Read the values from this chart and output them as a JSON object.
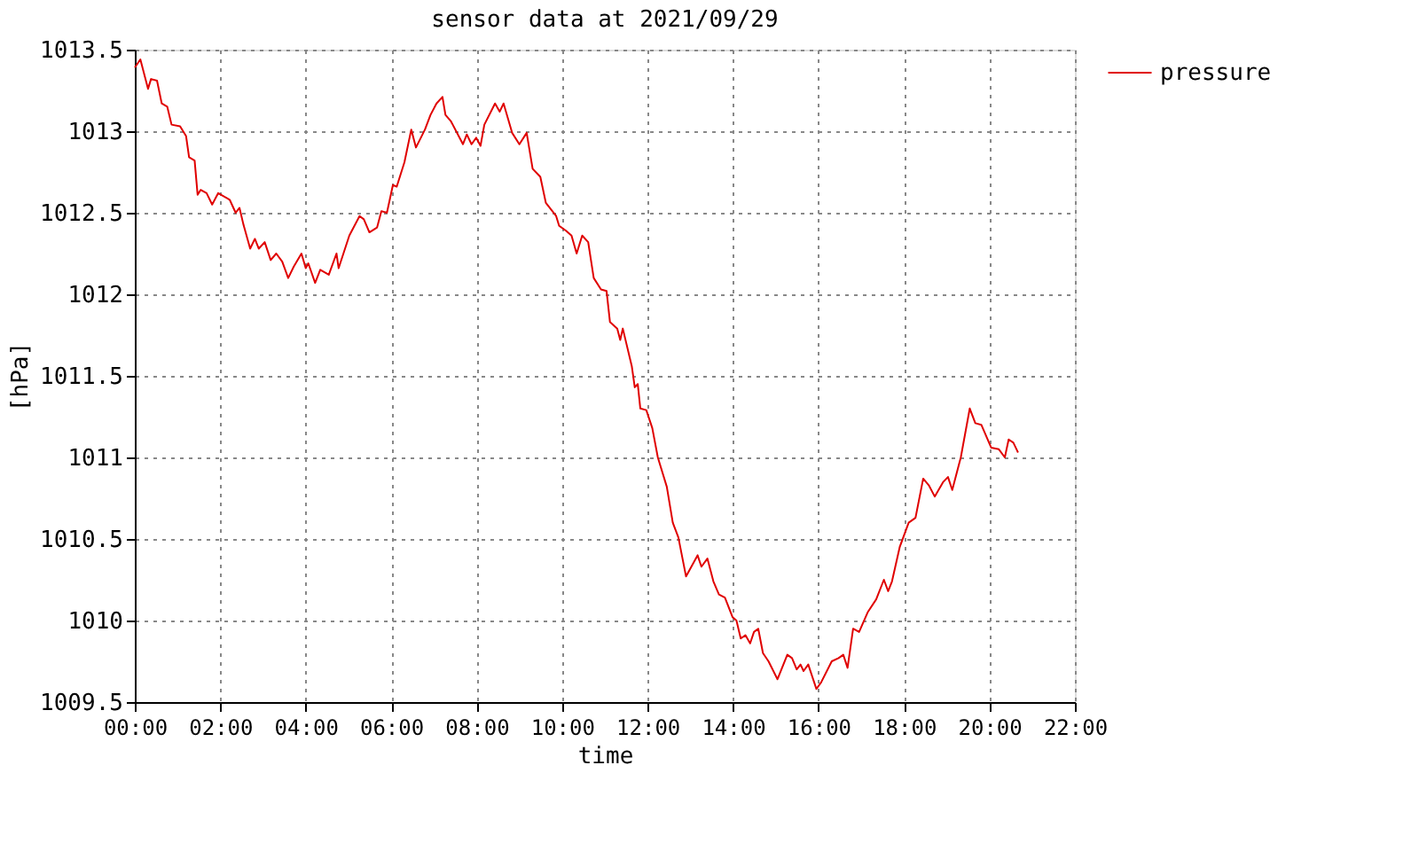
{
  "chart_data": {
    "type": "line",
    "title": "sensor data at 2021/09/29",
    "xlabel": "time",
    "ylabel": "[hPa]",
    "x": [
      0.0,
      0.13,
      0.31,
      0.38,
      0.52,
      0.63,
      0.76,
      0.86,
      1.06,
      1.2,
      1.27,
      1.4,
      1.47,
      1.54,
      1.68,
      1.81,
      1.95,
      2.22,
      2.36,
      2.45,
      2.54,
      2.7,
      2.81,
      2.9,
      3.04,
      3.18,
      3.31,
      3.45,
      3.59,
      3.72,
      3.9,
      4.0,
      4.06,
      4.22,
      4.34,
      4.54,
      4.72,
      4.77,
      5.02,
      5.26,
      5.36,
      5.49,
      5.67,
      5.77,
      5.9,
      6.04,
      6.13,
      6.31,
      6.47,
      6.58,
      6.79,
      6.92,
      7.06,
      7.2,
      7.27,
      7.4,
      7.68,
      7.77,
      7.88,
      7.99,
      8.09,
      8.18,
      8.43,
      8.54,
      8.63,
      8.83,
      9.0,
      9.17,
      9.31,
      9.49,
      9.62,
      9.86,
      9.93,
      10.09,
      10.22,
      10.34,
      10.47,
      10.61,
      10.74,
      10.91,
      11.04,
      11.12,
      11.29,
      11.36,
      11.42,
      11.63,
      11.7,
      11.77,
      11.83,
      11.97,
      12.11,
      12.24,
      12.45,
      12.59,
      12.72,
      12.9,
      13.17,
      13.26,
      13.4,
      13.54,
      13.67,
      13.81,
      13.99,
      14.08,
      14.18,
      14.29,
      14.4,
      14.49,
      14.59,
      14.7,
      14.83,
      15.04,
      15.27,
      15.38,
      15.49,
      15.58,
      15.65,
      15.76,
      15.9,
      15.95,
      16.06,
      16.31,
      16.47,
      16.58,
      16.68,
      16.81,
      16.95,
      17.15,
      17.35,
      17.53,
      17.63,
      17.72,
      17.9,
      18.11,
      18.27,
      18.45,
      18.58,
      18.72,
      18.92,
      19.03,
      19.13,
      19.33,
      19.54,
      19.67,
      19.81,
      20.04,
      20.22,
      20.36,
      20.45,
      20.56,
      20.67
    ],
    "series": [
      {
        "name": "pressure",
        "color": "#e00000",
        "values": [
          1013.39,
          1013.44,
          1013.26,
          1013.32,
          1013.31,
          1013.17,
          1013.15,
          1013.04,
          1013.03,
          1012.97,
          1012.84,
          1012.82,
          1012.61,
          1012.64,
          1012.62,
          1012.55,
          1012.62,
          1012.58,
          1012.5,
          1012.53,
          1012.43,
          1012.28,
          1012.34,
          1012.28,
          1012.32,
          1012.21,
          1012.25,
          1012.2,
          1012.1,
          1012.17,
          1012.25,
          1012.16,
          1012.19,
          1012.07,
          1012.15,
          1012.12,
          1012.25,
          1012.16,
          1012.36,
          1012.48,
          1012.46,
          1012.38,
          1012.41,
          1012.51,
          1012.5,
          1012.67,
          1012.66,
          1012.81,
          1013.01,
          1012.9,
          1013.01,
          1013.1,
          1013.17,
          1013.21,
          1013.1,
          1013.06,
          1012.92,
          1012.98,
          1012.92,
          1012.96,
          1012.91,
          1013.04,
          1013.17,
          1013.12,
          1013.17,
          1012.99,
          1012.92,
          1012.99,
          1012.77,
          1012.72,
          1012.56,
          1012.48,
          1012.42,
          1012.39,
          1012.36,
          1012.25,
          1012.36,
          1012.32,
          1012.1,
          1012.03,
          1012.02,
          1011.83,
          1011.79,
          1011.72,
          1011.79,
          1011.56,
          1011.43,
          1011.45,
          1011.3,
          1011.29,
          1011.18,
          1011.0,
          1010.82,
          1010.6,
          1010.51,
          1010.27,
          1010.4,
          1010.33,
          1010.38,
          1010.24,
          1010.16,
          1010.14,
          1010.02,
          1010.0,
          1009.89,
          1009.91,
          1009.86,
          1009.93,
          1009.95,
          1009.8,
          1009.75,
          1009.64,
          1009.79,
          1009.77,
          1009.7,
          1009.73,
          1009.69,
          1009.73,
          1009.62,
          1009.58,
          1009.62,
          1009.75,
          1009.77,
          1009.79,
          1009.71,
          1009.95,
          1009.93,
          1010.05,
          1010.13,
          1010.25,
          1010.18,
          1010.24,
          1010.45,
          1010.6,
          1010.63,
          1010.87,
          1010.83,
          1010.76,
          1010.85,
          1010.88,
          1010.8,
          1011.0,
          1011.3,
          1011.21,
          1011.2,
          1011.06,
          1011.05,
          1011.0,
          1011.11,
          1011.09,
          1011.03
        ]
      }
    ],
    "xlim": [
      0,
      22
    ],
    "xticks": [
      {
        "value": 0,
        "label": "00:00"
      },
      {
        "value": 2,
        "label": "02:00"
      },
      {
        "value": 4,
        "label": "04:00"
      },
      {
        "value": 6,
        "label": "06:00"
      },
      {
        "value": 8,
        "label": "08:00"
      },
      {
        "value": 10,
        "label": "10:00"
      },
      {
        "value": 12,
        "label": "12:00"
      },
      {
        "value": 14,
        "label": "14:00"
      },
      {
        "value": 16,
        "label": "16:00"
      },
      {
        "value": 18,
        "label": "18:00"
      },
      {
        "value": 20,
        "label": "20:00"
      },
      {
        "value": 22,
        "label": "22:00"
      }
    ],
    "ylim": [
      1009.5,
      1013.5
    ],
    "yticks": [
      1009.5,
      1010,
      1010.5,
      1011,
      1011.5,
      1012,
      1012.5,
      1013,
      1013.5
    ],
    "grid": true,
    "legend": "top right",
    "marker": "none",
    "line_style": "solid"
  }
}
